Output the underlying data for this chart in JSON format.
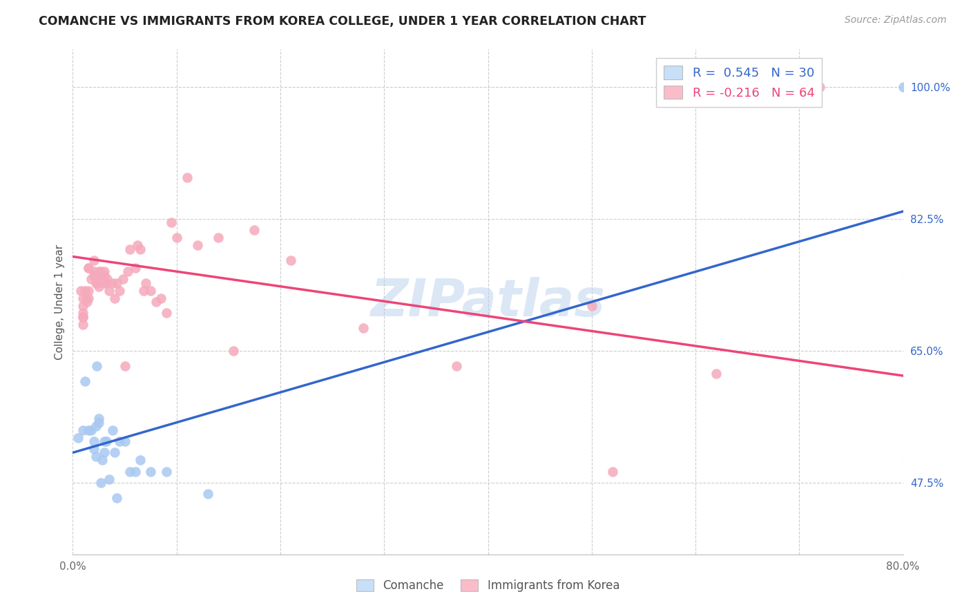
{
  "title": "COMANCHE VS IMMIGRANTS FROM KOREA COLLEGE, UNDER 1 YEAR CORRELATION CHART",
  "source": "Source: ZipAtlas.com",
  "ylabel": "College, Under 1 year",
  "xlim": [
    0.0,
    0.8
  ],
  "ylim": [
    0.38,
    1.05
  ],
  "background_color": "#ffffff",
  "watermark": "ZIPatlas",
  "blue_scatter_color": "#a8c8f0",
  "pink_scatter_color": "#f5aabb",
  "blue_line_color": "#3366cc",
  "pink_line_color": "#ee4477",
  "legend_box_color_blue": "#c8dff8",
  "legend_box_color_pink": "#fbbcca",
  "grid_color": "#cccccc",
  "R_blue": 0.545,
  "N_blue": 30,
  "R_pink": -0.216,
  "N_pink": 64,
  "blue_line_x0": 0.0,
  "blue_line_y0": 0.515,
  "blue_line_x1": 0.8,
  "blue_line_y1": 0.835,
  "pink_line_x0": 0.0,
  "pink_line_y0": 0.775,
  "pink_line_x1": 0.8,
  "pink_line_y1": 0.617,
  "comanche_x": [
    0.005,
    0.01,
    0.012,
    0.015,
    0.018,
    0.02,
    0.02,
    0.022,
    0.022,
    0.023,
    0.025,
    0.025,
    0.027,
    0.028,
    0.03,
    0.03,
    0.032,
    0.035,
    0.038,
    0.04,
    0.042,
    0.045,
    0.05,
    0.055,
    0.06,
    0.065,
    0.075,
    0.09,
    0.13,
    0.8
  ],
  "comanche_y": [
    0.535,
    0.545,
    0.61,
    0.545,
    0.545,
    0.52,
    0.53,
    0.55,
    0.51,
    0.63,
    0.56,
    0.555,
    0.475,
    0.505,
    0.515,
    0.53,
    0.53,
    0.48,
    0.545,
    0.515,
    0.455,
    0.53,
    0.53,
    0.49,
    0.49,
    0.505,
    0.49,
    0.49,
    0.46,
    1.0
  ],
  "korea_x": [
    0.008,
    0.01,
    0.01,
    0.01,
    0.01,
    0.01,
    0.01,
    0.012,
    0.013,
    0.014,
    0.015,
    0.015,
    0.015,
    0.015,
    0.018,
    0.02,
    0.02,
    0.02,
    0.02,
    0.022,
    0.022,
    0.023,
    0.025,
    0.025,
    0.025,
    0.027,
    0.027,
    0.03,
    0.03,
    0.03,
    0.032,
    0.033,
    0.035,
    0.038,
    0.04,
    0.042,
    0.045,
    0.048,
    0.05,
    0.053,
    0.055,
    0.06,
    0.062,
    0.065,
    0.068,
    0.07,
    0.075,
    0.08,
    0.085,
    0.09,
    0.095,
    0.1,
    0.11,
    0.12,
    0.14,
    0.155,
    0.175,
    0.21,
    0.28,
    0.37,
    0.5,
    0.52,
    0.62,
    0.72
  ],
  "korea_y": [
    0.73,
    0.72,
    0.695,
    0.7,
    0.685,
    0.695,
    0.71,
    0.73,
    0.72,
    0.715,
    0.72,
    0.76,
    0.73,
    0.76,
    0.745,
    0.77,
    0.75,
    0.75,
    0.755,
    0.75,
    0.74,
    0.74,
    0.75,
    0.755,
    0.735,
    0.75,
    0.755,
    0.75,
    0.74,
    0.755,
    0.74,
    0.745,
    0.73,
    0.74,
    0.72,
    0.74,
    0.73,
    0.745,
    0.63,
    0.755,
    0.785,
    0.76,
    0.79,
    0.785,
    0.73,
    0.74,
    0.73,
    0.715,
    0.72,
    0.7,
    0.82,
    0.8,
    0.88,
    0.79,
    0.8,
    0.65,
    0.81,
    0.77,
    0.68,
    0.63,
    0.71,
    0.49,
    0.62,
    1.0
  ]
}
